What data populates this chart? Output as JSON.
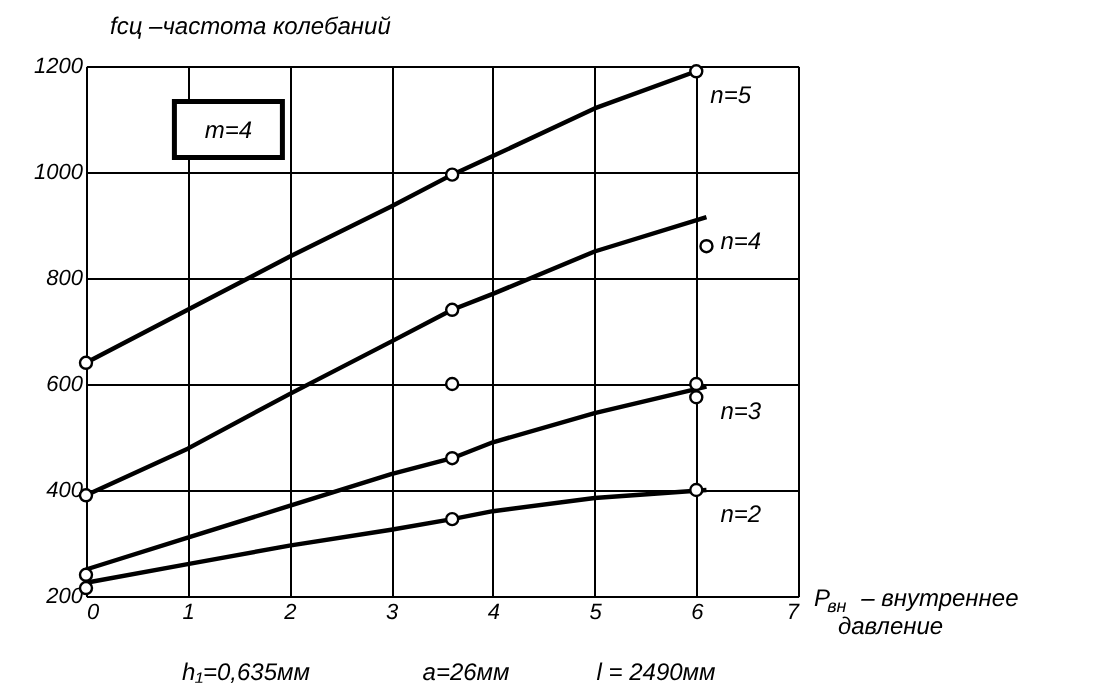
{
  "chart_data": {
    "type": "line",
    "title": "fсц –частота колебаний",
    "xlabel": "P$_{вн}$ – внутреннее давление",
    "xlim": [
      0,
      7
    ],
    "xticks": [
      0,
      1,
      2,
      3,
      4,
      5,
      6,
      7
    ],
    "ylim": [
      200,
      1200
    ],
    "yticks": [
      200,
      400,
      600,
      800,
      1000,
      1200
    ],
    "grid": true,
    "marker": "none",
    "line_style": "solid",
    "series": [
      {
        "name": "n=5",
        "color": "#000000",
        "x": [
          0,
          1,
          2,
          3,
          3.6,
          4,
          5,
          6
        ],
        "values": [
          640,
          740,
          840,
          935,
          995,
          1030,
          1120,
          1190
        ]
      },
      {
        "name": "n=4",
        "color": "#000000",
        "x": [
          0,
          1,
          2,
          3,
          3.6,
          4,
          5,
          6.1
        ],
        "values": [
          390,
          478,
          581,
          680,
          740,
          770,
          850,
          915
        ]
      },
      {
        "name": "n=3",
        "color": "#000000",
        "x": [
          0,
          1,
          2,
          3,
          3.6,
          4,
          5,
          6.1
        ],
        "values": [
          250,
          310,
          370,
          430,
          460,
          490,
          545,
          595
        ]
      },
      {
        "name": "n=2",
        "color": "#000000",
        "x": [
          0,
          1,
          2,
          3,
          3.6,
          4,
          5,
          6.1
        ],
        "values": [
          225,
          260,
          295,
          325,
          345,
          360,
          385,
          400
        ]
      },
      {
        "type": "scatter",
        "marker": "circle",
        "color": "#000000",
        "x": [
          0,
          3.6,
          6,
          0,
          3.6,
          6.1,
          3.6,
          0,
          3.6,
          6,
          6,
          0,
          3.6,
          6
        ],
        "values": [
          640,
          995,
          1190,
          390,
          740,
          860,
          600,
          240,
          460,
          600,
          575,
          215,
          345,
          400
        ]
      }
    ],
    "annotations": [
      "m=4",
      "h₁=0,635мм",
      "a=26мм",
      "l = 2490мм"
    ]
  }
}
